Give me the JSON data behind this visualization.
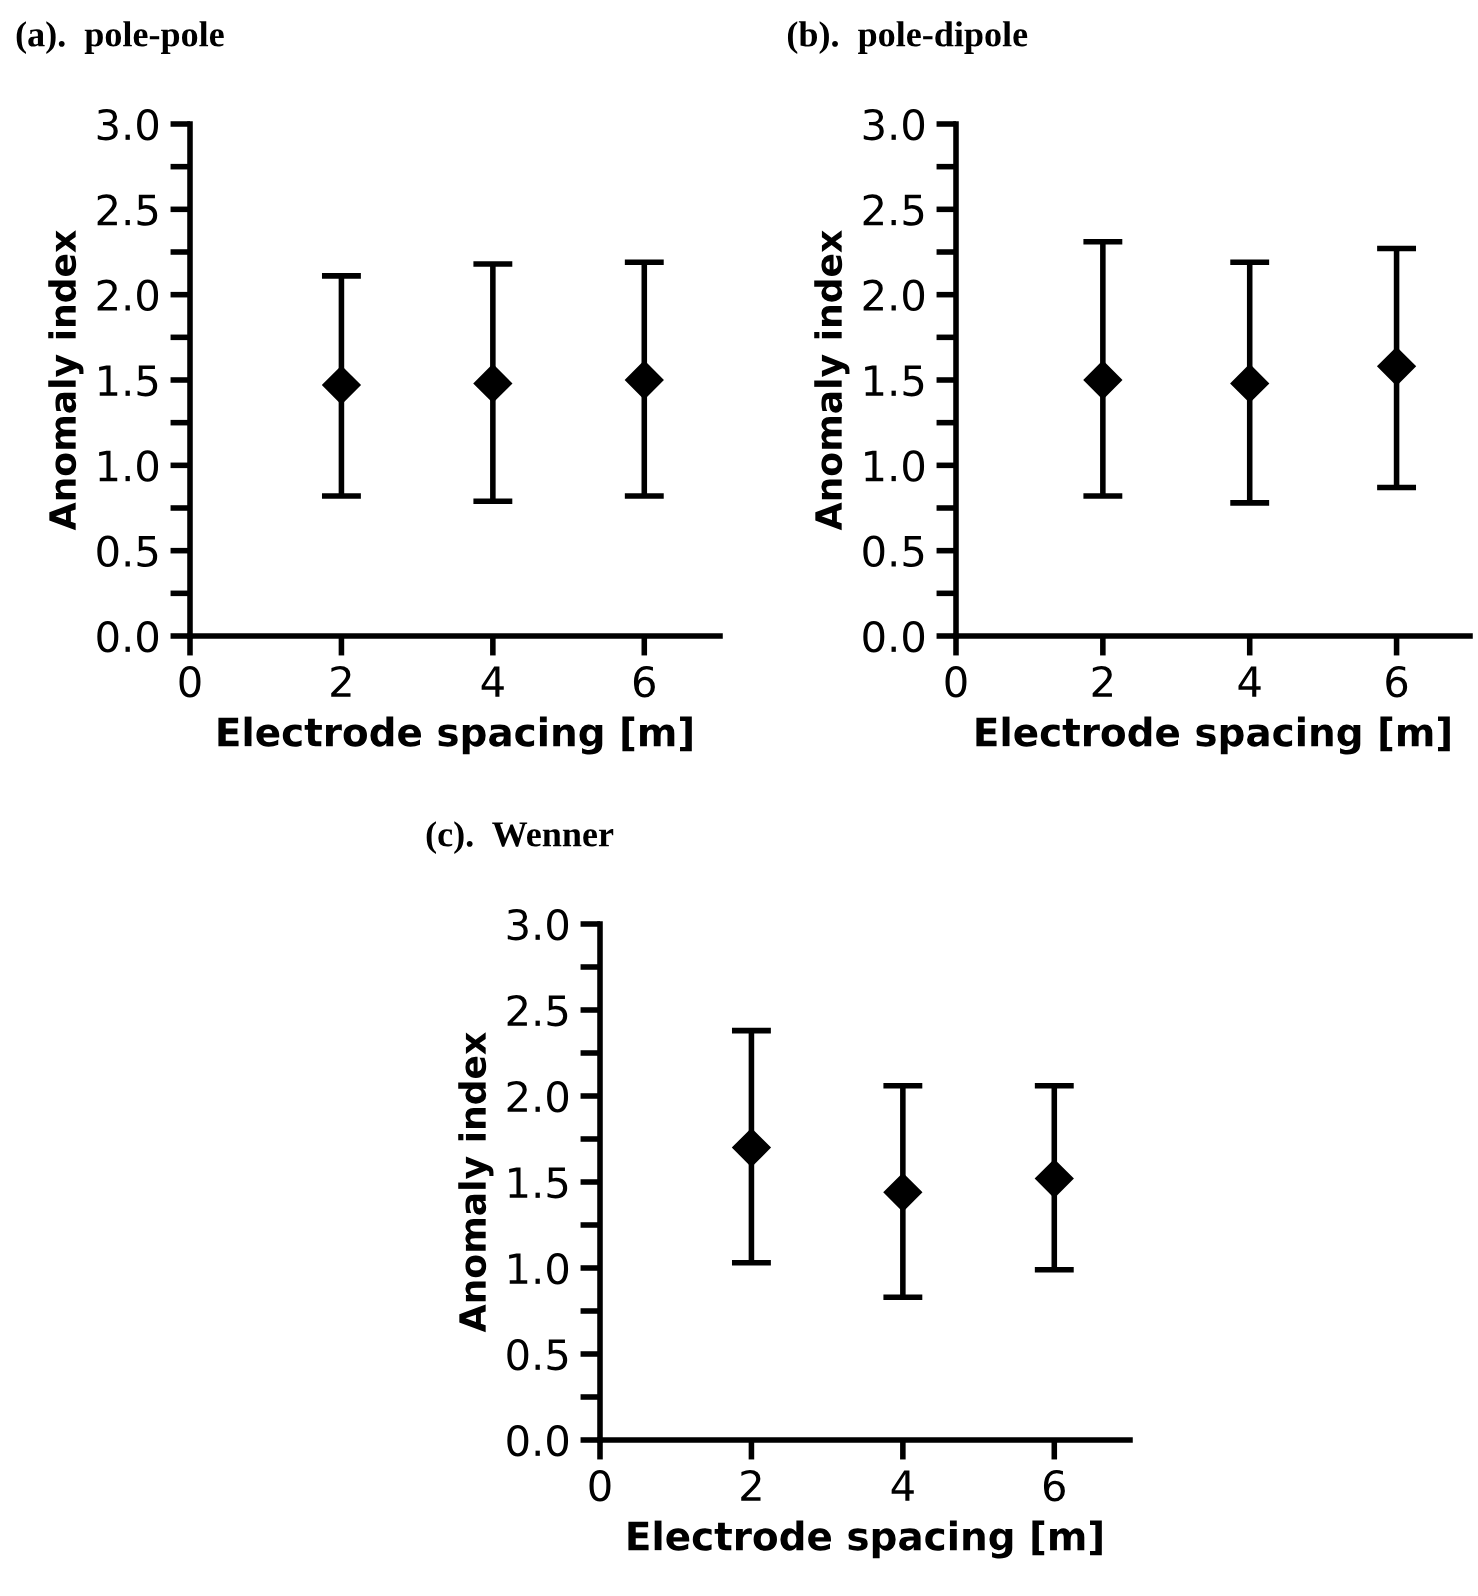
{
  "chart_data": [
    {
      "type": "scatter",
      "title": "(a).  pole-pole",
      "xlabel": "Electrode spacing [m]",
      "ylabel": "Anomaly index",
      "x": [
        2,
        4,
        6
      ],
      "values": [
        1.47,
        1.48,
        1.5
      ],
      "errors": [
        [
          0.82,
          2.11
        ],
        [
          0.79,
          2.18
        ],
        [
          0.82,
          2.19
        ]
      ],
      "color": "#000000",
      "marker": "diamond",
      "xlim": [
        0,
        7
      ],
      "ylim": [
        0,
        3
      ],
      "xticks": [
        0,
        2,
        4,
        6
      ],
      "yticks": [
        {
          "value": 0,
          "label": "0.0"
        },
        {
          "value": 0.25,
          "label": null
        },
        {
          "value": 0.5,
          "label": "0.5"
        },
        {
          "value": 0.75,
          "label": null
        },
        {
          "value": 1,
          "label": "1.0"
        },
        {
          "value": 1.25,
          "label": null
        },
        {
          "value": 1.5,
          "label": "1.5"
        },
        {
          "value": 1.75,
          "label": null
        },
        {
          "value": 2,
          "label": "2.0"
        },
        {
          "value": 2.25,
          "label": null
        },
        {
          "value": 2.5,
          "label": "2.5"
        },
        {
          "value": 2.75,
          "label": null
        },
        {
          "value": 3,
          "label": "3.0"
        }
      ],
      "grid": false
    },
    {
      "type": "scatter",
      "title": "(b).  pole-dipole",
      "xlabel": "Electrode spacing [m]",
      "ylabel": "Anomaly index",
      "x": [
        2,
        4,
        6
      ],
      "values": [
        1.5,
        1.48,
        1.58
      ],
      "errors": [
        [
          0.82,
          2.31
        ],
        [
          0.78,
          2.19
        ],
        [
          0.87,
          2.27
        ]
      ],
      "color": "#000000",
      "marker": "diamond",
      "xlim": [
        0,
        7
      ],
      "ylim": [
        0,
        3
      ],
      "xticks": [
        0,
        2,
        4,
        6
      ],
      "yticks": [
        {
          "value": 0,
          "label": "0.0"
        },
        {
          "value": 0.25,
          "label": null
        },
        {
          "value": 0.5,
          "label": "0.5"
        },
        {
          "value": 0.75,
          "label": null
        },
        {
          "value": 1,
          "label": "1.0"
        },
        {
          "value": 1.25,
          "label": null
        },
        {
          "value": 1.5,
          "label": "1.5"
        },
        {
          "value": 1.75,
          "label": null
        },
        {
          "value": 2,
          "label": "2.0"
        },
        {
          "value": 2.25,
          "label": null
        },
        {
          "value": 2.5,
          "label": "2.5"
        },
        {
          "value": 2.75,
          "label": null
        },
        {
          "value": 3,
          "label": "3.0"
        }
      ],
      "grid": false
    },
    {
      "type": "scatter",
      "title": "(c).  Wenner",
      "xlabel": "Electrode spacing [m]",
      "ylabel": "Anomaly index",
      "x": [
        2,
        4,
        6
      ],
      "values": [
        1.7,
        1.44,
        1.52
      ],
      "errors": [
        [
          1.03,
          2.38
        ],
        [
          0.83,
          2.06
        ],
        [
          0.99,
          2.06
        ]
      ],
      "color": "#000000",
      "marker": "diamond",
      "xlim": [
        0,
        7
      ],
      "ylim": [
        0,
        3
      ],
      "xticks": [
        0,
        2,
        4,
        6
      ],
      "yticks": [
        {
          "value": 0,
          "label": "0.0"
        },
        {
          "value": 0.25,
          "label": null
        },
        {
          "value": 0.5,
          "label": "0.5"
        },
        {
          "value": 0.75,
          "label": null
        },
        {
          "value": 1,
          "label": "1.0"
        },
        {
          "value": 1.25,
          "label": null
        },
        {
          "value": 1.5,
          "label": "1.5"
        },
        {
          "value": 1.75,
          "label": null
        },
        {
          "value": 2,
          "label": "2.0"
        },
        {
          "value": 2.25,
          "label": null
        },
        {
          "value": 2.5,
          "label": "2.5"
        },
        {
          "value": 2.75,
          "label": null
        },
        {
          "value": 3,
          "label": "3.0"
        }
      ],
      "grid": false
    }
  ]
}
